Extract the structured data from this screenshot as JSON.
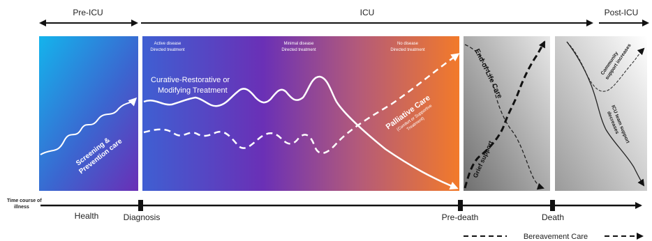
{
  "phases": {
    "pre_icu": "Pre-ICU",
    "icu": "ICU",
    "post_icu": "Post-ICU"
  },
  "panels": {
    "icu_headers": {
      "active": [
        "Active disease",
        "Directed treatment"
      ],
      "minimal": [
        "Minimal disease",
        "Directed treatment"
      ],
      "none": [
        "No disease",
        "Directed treatment"
      ]
    }
  },
  "labels": {
    "screening": [
      "Screening &",
      "Prevention care"
    ],
    "curative": [
      "Curative-Restorative or",
      "Modifying Treatment"
    ],
    "palliative": "Palliative Care",
    "palliative_sub": [
      "(Comfort or Supportive",
      "Treatment)"
    ],
    "end_of_life": "End-of-Life Care",
    "grief": "Grief support",
    "community": [
      "Community",
      "support increases"
    ],
    "icu_support": [
      "ICU team support",
      "decreases"
    ]
  },
  "timeline": {
    "axis_label": [
      "Time course of",
      "illness"
    ],
    "health": "Health",
    "diagnosis": "Diagnosis",
    "pre_death": "Pre-death",
    "death": "Death",
    "bereavement": "Bereavement Care"
  },
  "colors": {
    "blue": "#1aa8e8",
    "purple": "#6a35b8",
    "orange": "#f07a2a",
    "gray_dark": "#7a7a7a",
    "gray_light": "#f2f2f2"
  }
}
